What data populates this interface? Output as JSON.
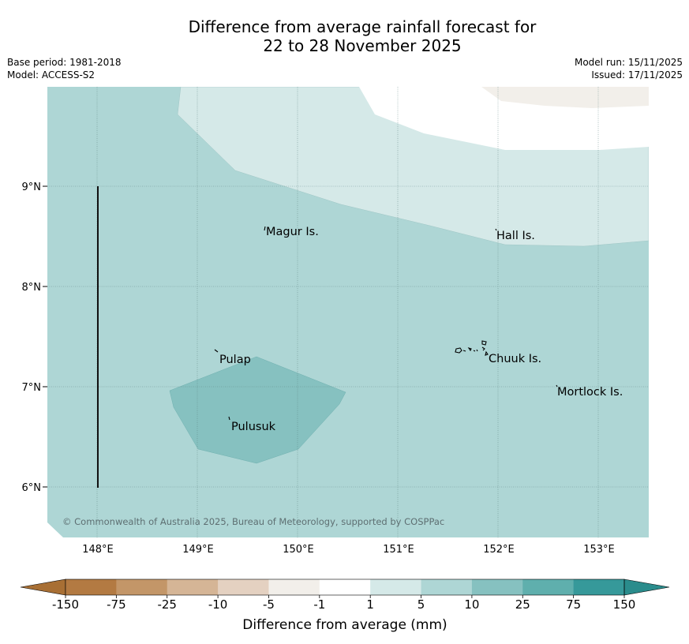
{
  "title": {
    "line1": "Difference from average rainfall forecast for",
    "line2": "22 to 28 November 2025"
  },
  "meta": {
    "base_period": "Base period: 1981-2018",
    "model": "Model: ACCESS-S2",
    "model_run": "Model run: 15/11/2025",
    "issued": "Issued: 17/11/2025"
  },
  "map": {
    "lat_labels": [
      "9°N",
      "8°N",
      "7°N",
      "6°N"
    ],
    "lon_labels": [
      "148°E",
      "149°E",
      "150°E",
      "151°E",
      "152°E",
      "153°E"
    ],
    "islands": {
      "magur": "Magur Is.",
      "hall": "Hall Is.",
      "pulap": "Pulap",
      "chuuk": "Chuuk Is.",
      "mortlock": "Mortlock Is.",
      "pulusuk": "Pulusuk"
    },
    "copyright": "© Commonwealth of Australia 2025, Bureau of Meteorology, supported by COSPPac"
  },
  "colorbar": {
    "ticks": [
      "-150",
      "-75",
      "-25",
      "-10",
      "-5",
      "-1",
      "1",
      "5",
      "10",
      "25",
      "75",
      "150"
    ],
    "label": "Difference from average (mm)",
    "colors": [
      "#a86f34",
      "#b37a42",
      "#c39668",
      "#d5b596",
      "#e4d1c1",
      "#f2efea",
      "#ffffff",
      "#d5e9e8",
      "#aed6d5",
      "#86c1c0",
      "#5fafad",
      "#36999a",
      "#2a8c8c"
    ]
  }
}
